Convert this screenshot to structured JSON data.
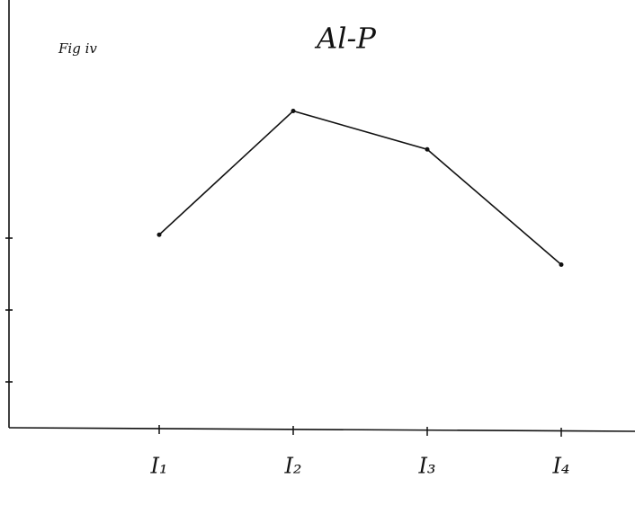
{
  "chart_data": {
    "type": "line",
    "title": "Al-P",
    "annotation": "Fig iv",
    "categories": [
      "I₁",
      "I₂",
      "I₃",
      "I₄"
    ],
    "series": [
      {
        "name": "Al-P",
        "color": "#111111",
        "values": [
          45,
          74,
          65,
          38
        ]
      }
    ],
    "ylim": [
      0,
      100
    ]
  }
}
